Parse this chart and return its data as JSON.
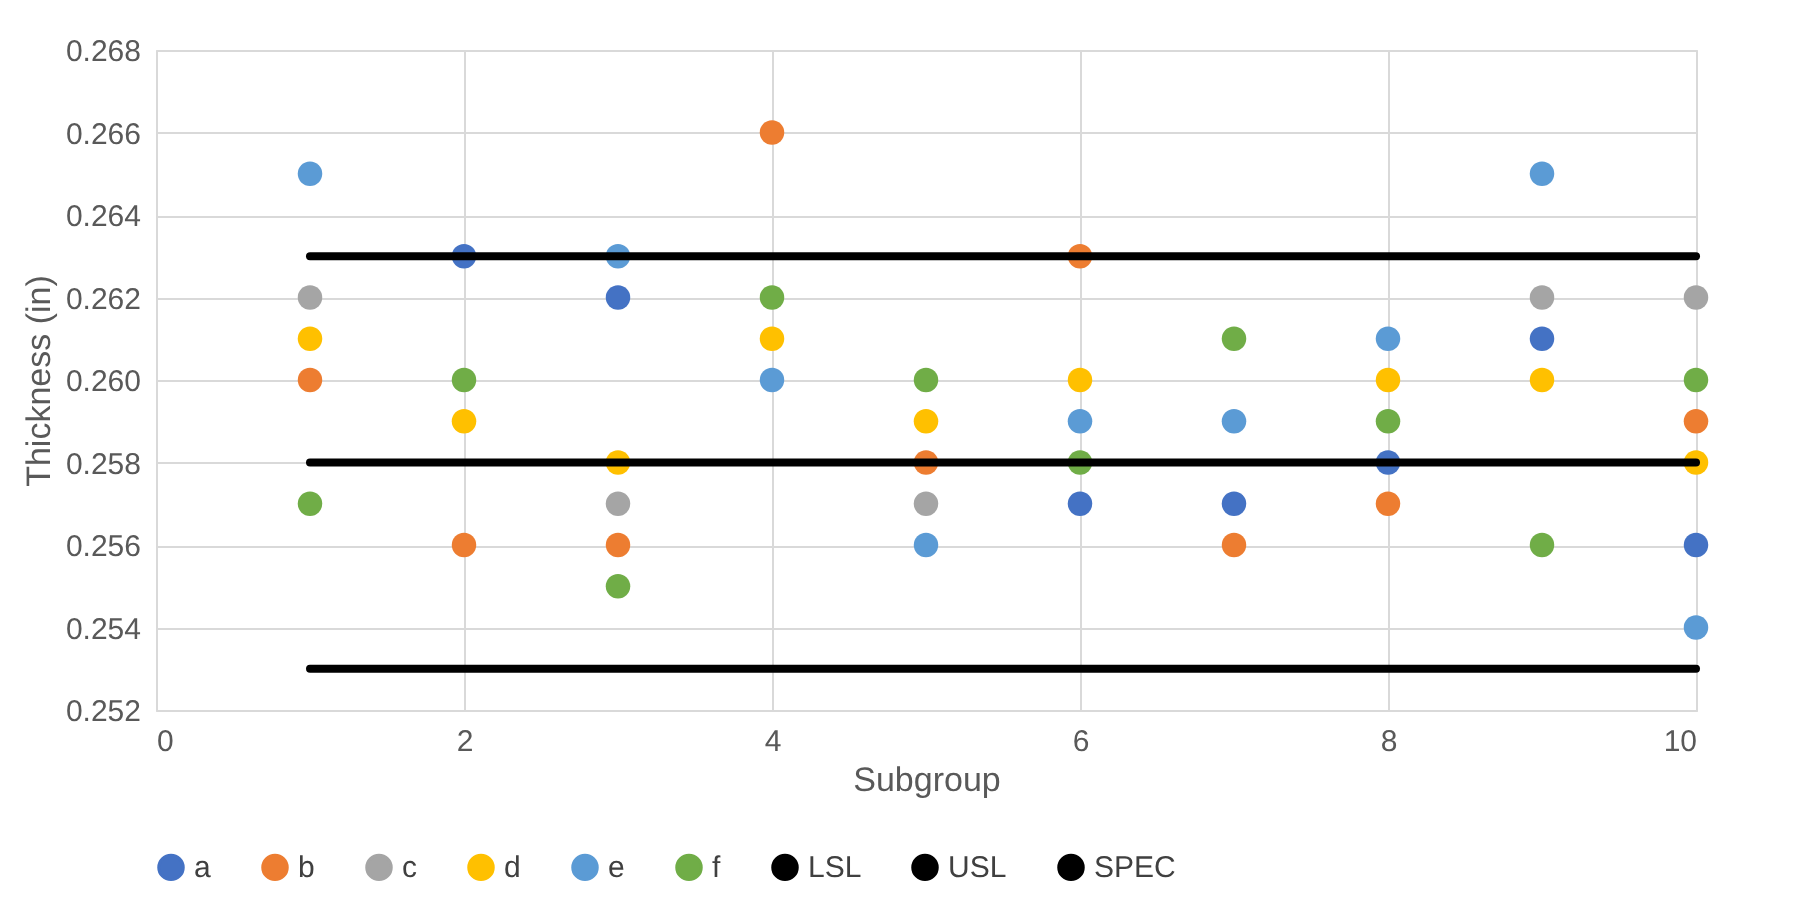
{
  "chart_data": {
    "type": "scatter",
    "xlabel": "Subgroup",
    "ylabel": "Thickness (in)",
    "x": [
      1,
      2,
      3,
      4,
      5,
      6,
      7,
      8,
      9,
      10
    ],
    "series": [
      {
        "name": "a",
        "color": "#4472c4",
        "values": [
          null,
          0.263,
          0.262,
          null,
          null,
          0.257,
          0.257,
          0.258,
          0.261,
          0.256
        ]
      },
      {
        "name": "b",
        "color": "#ed7d31",
        "values": [
          0.26,
          0.256,
          0.256,
          0.266,
          0.258,
          0.263,
          0.256,
          0.257,
          null,
          0.259
        ]
      },
      {
        "name": "c",
        "color": "#a5a5a5",
        "values": [
          0.262,
          null,
          0.257,
          null,
          0.257,
          null,
          null,
          null,
          0.262,
          0.262
        ]
      },
      {
        "name": "d",
        "color": "#ffc000",
        "values": [
          0.261,
          0.259,
          0.258,
          0.261,
          0.259,
          0.26,
          null,
          0.26,
          0.26,
          0.258
        ]
      },
      {
        "name": "e",
        "color": "#5b9bd5",
        "values": [
          0.265,
          null,
          0.263,
          0.26,
          0.256,
          0.259,
          0.259,
          0.261,
          0.265,
          0.254
        ]
      },
      {
        "name": "f",
        "color": "#70ad47",
        "values": [
          0.257,
          0.26,
          0.255,
          0.262,
          0.26,
          0.258,
          0.261,
          0.259,
          0.256,
          0.26
        ]
      },
      {
        "name": "LSL",
        "type": "line",
        "marker": "none",
        "line_style": "solid",
        "color": "#000000",
        "values": [
          0.253,
          0.253,
          0.253,
          0.253,
          0.253,
          0.253,
          0.253,
          0.253,
          0.253,
          0.253
        ]
      },
      {
        "name": "USL",
        "type": "line",
        "marker": "none",
        "line_style": "solid",
        "color": "#000000",
        "values": [
          0.263,
          0.263,
          0.263,
          0.263,
          0.263,
          0.263,
          0.263,
          0.263,
          0.263,
          0.263
        ]
      },
      {
        "name": "SPEC",
        "type": "line",
        "marker": "none",
        "line_style": "solid",
        "color": "#000000",
        "values": [
          0.258,
          0.258,
          0.258,
          0.258,
          0.258,
          0.258,
          0.258,
          0.258,
          0.258,
          0.258
        ]
      }
    ],
    "xlim": [
      0,
      10
    ],
    "xticks": [
      0,
      2,
      4,
      6,
      8,
      10
    ],
    "ylim": [
      0.252,
      0.268
    ],
    "yticks": [
      0.252,
      0.254,
      0.256,
      0.258,
      {
        "value": 0.26,
        "label": "0.260"
      },
      0.262,
      0.264,
      0.266,
      0.268
    ],
    "grid": true,
    "legend": "bottom",
    "marker": "circle"
  }
}
